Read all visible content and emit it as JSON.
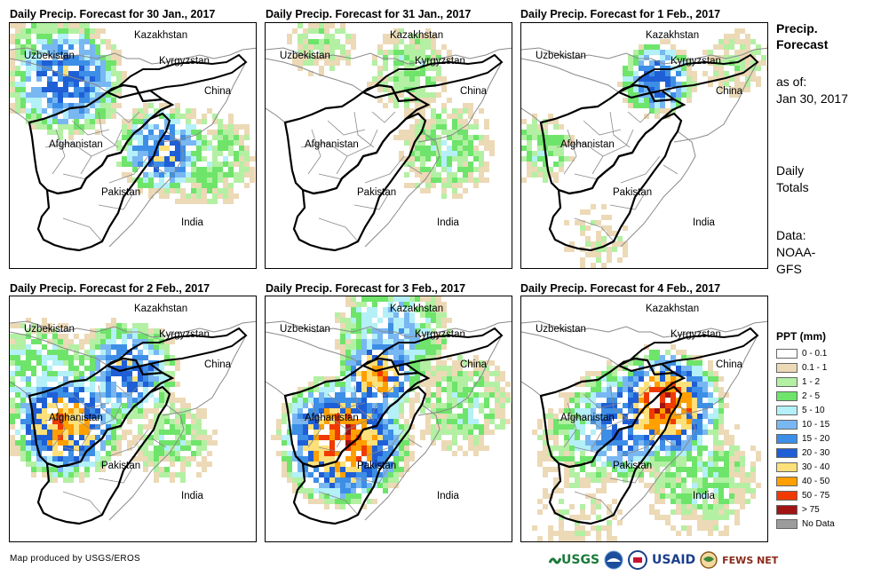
{
  "panels": [
    {
      "title": "Daily Precip. Forecast for 30 Jan., 2017",
      "intensity": "moderate"
    },
    {
      "title": "Daily Precip. Forecast for 31 Jan., 2017",
      "intensity": "light"
    },
    {
      "title": "Daily Precip. Forecast for 1 Feb., 2017",
      "intensity": "light"
    },
    {
      "title": "Daily Precip. Forecast for 2 Feb., 2017",
      "intensity": "moderate"
    },
    {
      "title": "Daily Precip. Forecast for 3 Feb., 2017",
      "intensity": "heavy"
    },
    {
      "title": "Daily Precip. Forecast for 4 Feb., 2017",
      "intensity": "heavy"
    }
  ],
  "labels": {
    "kazakhstan": "Kazakhstan",
    "uzbekistan": "Uzbekistan",
    "kyrgyzstan": "Kyrgyzstan",
    "china": "China",
    "afghanistan": "Afghanistan",
    "pakistan": "Pakistan",
    "india": "India"
  },
  "sidebar": {
    "title_line1": "Precip.",
    "title_line2": "Forecast",
    "asof_line1": "as of:",
    "asof_line2": "Jan 30, 2017",
    "daily_line1": "Daily",
    "daily_line2": "Totals",
    "data_line1": "Data:",
    "data_line2": "NOAA-",
    "data_line3": "GFS"
  },
  "legend": {
    "title": "PPT (mm)",
    "items": [
      {
        "label": "0 - 0.1",
        "color": "#ffffff"
      },
      {
        "label": "0.1 - 1",
        "color": "#ecd9b6"
      },
      {
        "label": "1 - 2",
        "color": "#b3f0a3"
      },
      {
        "label": "2 - 5",
        "color": "#6ee46b"
      },
      {
        "label": "5 - 10",
        "color": "#b3f0f7"
      },
      {
        "label": "10 - 15",
        "color": "#78b7f2"
      },
      {
        "label": "15 - 20",
        "color": "#3d8ee6"
      },
      {
        "label": "20 - 30",
        "color": "#1f5fd6"
      },
      {
        "label": "30 - 40",
        "color": "#fde07a"
      },
      {
        "label": "40 - 50",
        "color": "#ff9f00"
      },
      {
        "label": "50 - 75",
        "color": "#f03a00"
      },
      {
        "label": "> 75",
        "color": "#a01414"
      },
      {
        "label": "No Data",
        "color": "#9c9c9c"
      }
    ]
  },
  "footer": {
    "credit": "Map produced by USGS/EROS"
  },
  "logos": {
    "usgs": "USGS",
    "usaid": "USAID",
    "fewsnet": "FEWS NET"
  }
}
